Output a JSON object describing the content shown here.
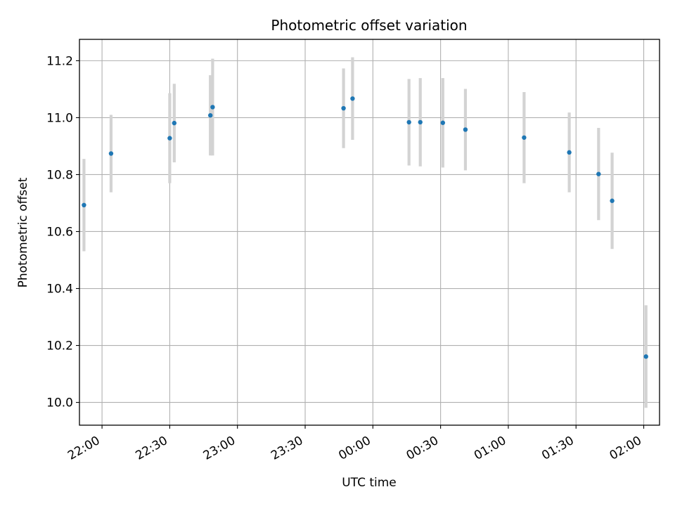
{
  "chart_data": {
    "type": "scatter",
    "title": "Photometric offset variation",
    "xlabel": "UTC time",
    "ylabel": "Photometric offset",
    "xlim": [
      "21:50",
      "02:07"
    ],
    "ylim": [
      9.92,
      11.275
    ],
    "grid": true,
    "x_ticks": [
      "22:00",
      "22:30",
      "23:00",
      "23:30",
      "00:00",
      "00:30",
      "01:00",
      "01:30",
      "02:00"
    ],
    "y_ticks": [
      "10.0",
      "10.2",
      "10.4",
      "10.6",
      "10.8",
      "11.0",
      "11.2"
    ],
    "y_tick_values": [
      10.0,
      10.2,
      10.4,
      10.6,
      10.8,
      11.0,
      11.2
    ],
    "series": [
      {
        "marker_color": "#1f77b4",
        "errorbar_color": "#d3d3d3",
        "points": [
          {
            "t": "21:52",
            "y": 10.693,
            "err": 0.162
          },
          {
            "t": "22:04",
            "y": 10.874,
            "err": 0.136
          },
          {
            "t": "22:30",
            "y": 10.928,
            "err": 0.158
          },
          {
            "t": "22:32",
            "y": 10.981,
            "err": 0.138
          },
          {
            "t": "22:48",
            "y": 11.008,
            "err": 0.141
          },
          {
            "t": "22:49",
            "y": 11.037,
            "err": 0.17
          },
          {
            "t": "23:47",
            "y": 11.033,
            "err": 0.14
          },
          {
            "t": "23:51",
            "y": 11.067,
            "err": 0.145
          },
          {
            "t": "00:16",
            "y": 10.984,
            "err": 0.152
          },
          {
            "t": "00:21",
            "y": 10.984,
            "err": 0.155
          },
          {
            "t": "00:31",
            "y": 10.982,
            "err": 0.157
          },
          {
            "t": "00:41",
            "y": 10.958,
            "err": 0.143
          },
          {
            "t": "01:07",
            "y": 10.93,
            "err": 0.16
          },
          {
            "t": "01:27",
            "y": 10.878,
            "err": 0.14
          },
          {
            "t": "01:40",
            "y": 10.802,
            "err": 0.162
          },
          {
            "t": "01:46",
            "y": 10.708,
            "err": 0.169
          },
          {
            "t": "02:01",
            "y": 10.161,
            "err": 0.18
          }
        ]
      }
    ]
  }
}
